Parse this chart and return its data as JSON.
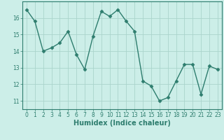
{
  "x": [
    0,
    1,
    2,
    3,
    4,
    5,
    6,
    7,
    8,
    9,
    10,
    11,
    12,
    13,
    14,
    15,
    16,
    17,
    18,
    19,
    20,
    21,
    22,
    23
  ],
  "y": [
    16.5,
    15.8,
    14.0,
    14.2,
    14.5,
    15.2,
    13.8,
    12.9,
    14.9,
    16.4,
    16.1,
    16.5,
    15.8,
    15.2,
    12.2,
    11.9,
    11.0,
    11.2,
    12.2,
    13.2,
    13.2,
    11.4,
    13.1,
    12.9
  ],
  "line_color": "#2e7d6e",
  "marker": "D",
  "marker_size": 2.5,
  "bg_color": "#cceee8",
  "grid_color": "#aad4cc",
  "title": "",
  "xlabel": "Humidex (Indice chaleur)",
  "ylabel": "",
  "xlim": [
    -0.5,
    23.5
  ],
  "ylim": [
    10.5,
    17.0
  ],
  "yticks": [
    11,
    12,
    13,
    14,
    15,
    16
  ],
  "xticks": [
    0,
    1,
    2,
    3,
    4,
    5,
    6,
    7,
    8,
    9,
    10,
    11,
    12,
    13,
    14,
    15,
    16,
    17,
    18,
    19,
    20,
    21,
    22,
    23
  ],
  "tick_color": "#2e7d6e",
  "tick_fontsize": 5.5,
  "xlabel_fontsize": 7,
  "axis_color": "#2e7d6e",
  "linewidth": 1.0
}
